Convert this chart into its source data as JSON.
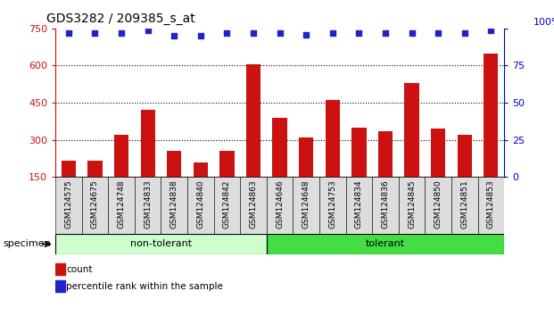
{
  "title": "GDS3282 / 209385_s_at",
  "categories": [
    "GSM124575",
    "GSM124675",
    "GSM124748",
    "GSM124833",
    "GSM124838",
    "GSM124840",
    "GSM124842",
    "GSM124863",
    "GSM124646",
    "GSM124648",
    "GSM124753",
    "GSM124834",
    "GSM124836",
    "GSM124845",
    "GSM124850",
    "GSM124851",
    "GSM124853"
  ],
  "bar_values": [
    215,
    215,
    320,
    420,
    255,
    210,
    255,
    605,
    390,
    310,
    460,
    350,
    335,
    530,
    345,
    320,
    650
  ],
  "dot_values": [
    97,
    97,
    97,
    99,
    95,
    95,
    97,
    97,
    97,
    96,
    97,
    97,
    97,
    97,
    97,
    97,
    99
  ],
  "bar_color": "#cc1111",
  "dot_color": "#2222cc",
  "ylim_left": [
    150,
    750
  ],
  "ylim_right": [
    0,
    100
  ],
  "yticks_left": [
    150,
    300,
    450,
    600,
    750
  ],
  "yticks_right": [
    0,
    25,
    50,
    75,
    100
  ],
  "group1_label": "non-tolerant",
  "group1_count": 8,
  "group2_label": "tolerant",
  "group2_count": 9,
  "group1_color": "#ccffcc",
  "group2_color": "#44dd44",
  "specimen_label": "specimen",
  "legend_bar_label": "count",
  "legend_dot_label": "percentile rank within the sample",
  "title_fontsize": 10,
  "axis_color_left": "#cc1111",
  "axis_color_right": "#0000cc",
  "xtick_bg_color": "#dddddd",
  "gridline_color": "black",
  "gridline_ticks": [
    300,
    450,
    600
  ]
}
